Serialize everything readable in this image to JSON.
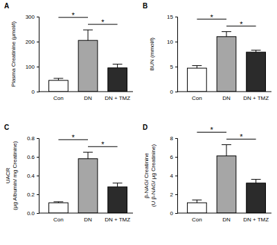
{
  "chart_data": [
    {
      "type": "bar",
      "title": "A",
      "y_label": [
        "Plasma Creatinine (μmol/l)"
      ],
      "categories": [
        "Con",
        "DN",
        "DN + TMZ"
      ],
      "values": [
        45,
        205,
        95
      ],
      "errors": [
        8,
        42,
        15
      ],
      "colors": [
        "#ffffff",
        "#a6a6a6",
        "#2b2b2b"
      ],
      "ylim": [
        0,
        300
      ],
      "yticks": [
        0,
        100,
        200,
        300
      ],
      "annotations": [
        {
          "text": "*",
          "between": [
            "Con",
            "DN"
          ]
        },
        {
          "text": "*",
          "between": [
            "DN",
            "DN + TMZ"
          ]
        }
      ]
    },
    {
      "type": "bar",
      "title": "B",
      "y_label": [
        "BUN (mmol/l)"
      ],
      "categories": [
        "Con",
        "DN",
        "DN + TMZ"
      ],
      "values": [
        4.7,
        11,
        7.9
      ],
      "errors": [
        0.5,
        1.0,
        0.4
      ],
      "colors": [
        "#ffffff",
        "#a6a6a6",
        "#2b2b2b"
      ],
      "ylim": [
        0,
        15
      ],
      "yticks": [
        0,
        5,
        10,
        15
      ],
      "annotations": [
        {
          "text": "*",
          "between": [
            "Con",
            "DN"
          ]
        },
        {
          "text": "*",
          "between": [
            "DN",
            "DN + TMZ"
          ]
        }
      ]
    },
    {
      "type": "bar",
      "title": "C",
      "y_label": [
        "UACR",
        "(μg Albumin/ mg Creatinine)"
      ],
      "categories": [
        "Con",
        "DN",
        "DN + TMZ"
      ],
      "values": [
        0.11,
        0.58,
        0.28
      ],
      "errors": [
        0.01,
        0.07,
        0.04
      ],
      "colors": [
        "#ffffff",
        "#a6a6a6",
        "#2b2b2b"
      ],
      "ylim": [
        0,
        0.8
      ],
      "yticks": [
        {
          "value": 0,
          "label": "0.0"
        },
        0.2,
        0.4,
        0.6,
        0.8
      ],
      "annotations": [
        {
          "text": "*",
          "between": [
            "Con",
            "DN"
          ]
        },
        {
          "text": "*",
          "between": [
            "DN",
            "DN + TMZ"
          ]
        }
      ]
    },
    {
      "type": "bar",
      "title": "D",
      "y_label": [
        "β-NAG/ Creatinine",
        "(U β-NAG/ μg Creatinine)"
      ],
      "categories": [
        "Con",
        "DN",
        "DN + TMZ"
      ],
      "values": [
        1.1,
        6.1,
        3.2
      ],
      "errors": [
        0.3,
        1.2,
        0.4
      ],
      "colors": [
        "#ffffff",
        "#a6a6a6",
        "#2b2b2b"
      ],
      "ylim": [
        0,
        8
      ],
      "yticks": [
        0,
        2,
        4,
        6,
        8
      ],
      "annotations": [
        {
          "text": "*",
          "between": [
            "Con",
            "DN"
          ]
        },
        {
          "text": "*",
          "between": [
            "DN",
            "DN + TMZ"
          ]
        }
      ]
    }
  ]
}
